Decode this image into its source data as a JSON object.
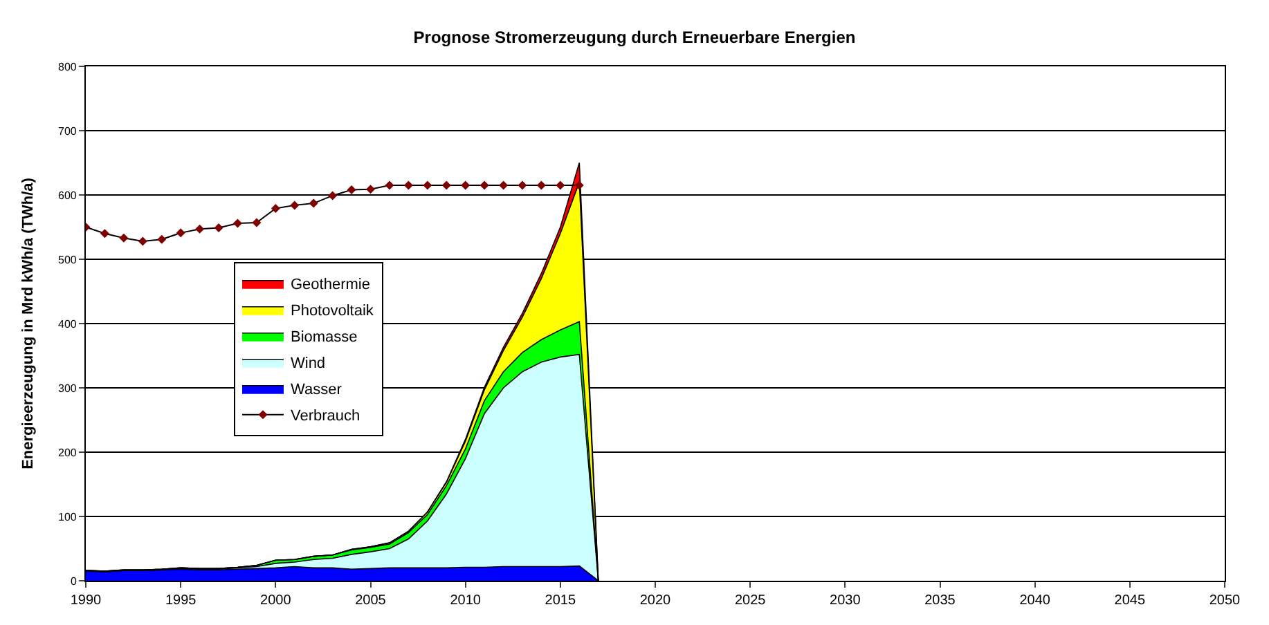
{
  "chart_data": {
    "type": "area",
    "stacked": true,
    "title": "Prognose Stromerzeugung durch Erneuerbare Energien",
    "ylabel": "Energieerzeugung in Mrd kWh/a (TWh/a)",
    "x": [
      1990,
      1991,
      1992,
      1993,
      1994,
      1995,
      1996,
      1997,
      1998,
      1999,
      2000,
      2001,
      2002,
      2003,
      2004,
      2005,
      2006,
      2007,
      2008,
      2009,
      2010,
      2011,
      2012,
      2013,
      2014,
      2015,
      2016,
      2017
    ],
    "series": [
      {
        "name": "Wasser",
        "color": "#0000ff",
        "values": [
          15,
          14,
          16,
          16,
          17,
          18,
          17,
          17,
          18,
          19,
          20,
          22,
          20,
          20,
          18,
          19,
          20,
          20,
          20,
          20,
          21,
          21,
          22,
          22,
          22,
          22,
          23,
          0
        ]
      },
      {
        "name": "Wind",
        "color": "#ccffff",
        "values": [
          0,
          0,
          0,
          0,
          0,
          1,
          1,
          1,
          2,
          3,
          7,
          7,
          13,
          15,
          23,
          26,
          30,
          45,
          73,
          115,
          169,
          239,
          278,
          303,
          318,
          326,
          329,
          0
        ]
      },
      {
        "name": "Biomasse",
        "color": "#00ff00",
        "values": [
          1,
          1,
          1,
          1,
          1,
          1,
          1,
          1,
          1,
          2,
          5,
          4,
          5,
          5,
          7,
          7,
          7,
          10,
          10,
          13,
          15,
          20,
          25,
          30,
          35,
          42,
          51,
          0
        ]
      },
      {
        "name": "Photovoltaik",
        "color": "#ffff00",
        "values": [
          0,
          0,
          0,
          0,
          0,
          0,
          0,
          0,
          0,
          0,
          0,
          0,
          0,
          0,
          1,
          1,
          2,
          2,
          4,
          5,
          12,
          17,
          33,
          55,
          95,
          150,
          217,
          0
        ]
      },
      {
        "name": "Geothermie",
        "color": "#ff0000",
        "values": [
          0,
          0,
          0,
          0,
          0,
          0,
          0,
          0,
          0,
          0,
          0,
          0,
          0,
          0,
          0,
          0,
          0,
          0,
          0,
          1,
          3,
          4,
          5,
          6,
          8,
          10,
          30,
          0
        ]
      },
      {
        "name": "Verbrauch",
        "type": "line",
        "color": "#800000",
        "marker": "diamond",
        "values": [
          550,
          540,
          533,
          528,
          531,
          541,
          547,
          549,
          556,
          557,
          579,
          584,
          587,
          599,
          608,
          609,
          615,
          615,
          615,
          615,
          615,
          615,
          615,
          615,
          615,
          615,
          615,
          null
        ]
      }
    ],
    "xlim": [
      1990,
      2050
    ],
    "xticks": [
      1990,
      1995,
      2000,
      2005,
      2010,
      2015,
      2020,
      2025,
      2030,
      2035,
      2040,
      2045,
      2050
    ],
    "ylim": [
      0,
      800
    ],
    "yticks": [
      0,
      100,
      200,
      300,
      400,
      500,
      600,
      700,
      800
    ],
    "grid": "y",
    "legend": "left",
    "marker": "none"
  }
}
